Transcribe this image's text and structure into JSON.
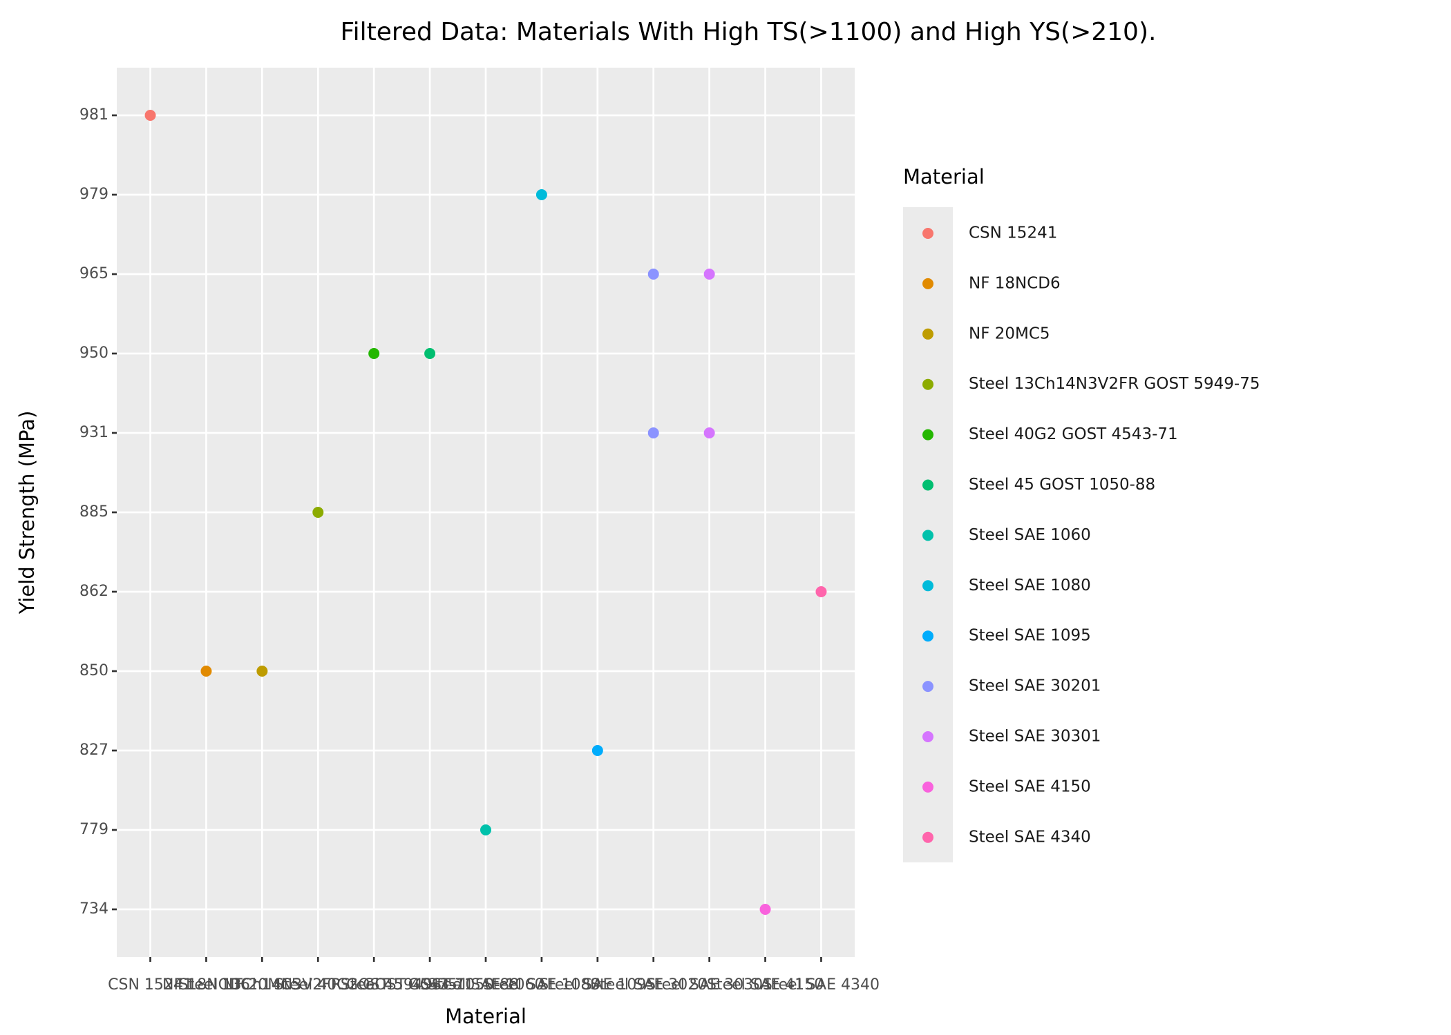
{
  "chart_data": {
    "type": "scatter",
    "title": "Filtered Data: Materials With High TS(>1100) and High YS(>210).",
    "x_label": "Material",
    "y_label": "Yield Strength (MPa)",
    "y_scale": "discrete",
    "y_categories": [
      734,
      779,
      827,
      850,
      862,
      885,
      931,
      950,
      965,
      979,
      981
    ],
    "grid": true,
    "legend_title": "Material",
    "legend_position": "right",
    "series": [
      {
        "name": "CSN 15241",
        "color": "#F8766D",
        "values": [
          981
        ]
      },
      {
        "name": "NF 18NCD6",
        "color": "#E18A00",
        "values": [
          850
        ]
      },
      {
        "name": "NF 20MC5",
        "color": "#BE9C00",
        "values": [
          850
        ]
      },
      {
        "name": "Steel 13Ch14N3V2FR GOST 5949-75",
        "color": "#8CAB00",
        "values": [
          885
        ]
      },
      {
        "name": "Steel 40G2 GOST 4543-71",
        "color": "#24B700",
        "values": [
          950
        ]
      },
      {
        "name": "Steel 45 GOST 1050-88",
        "color": "#00BE70",
        "values": [
          950
        ]
      },
      {
        "name": "Steel SAE 1060",
        "color": "#00C1AB",
        "values": [
          779
        ]
      },
      {
        "name": "Steel SAE 1080",
        "color": "#00BBDA",
        "values": [
          979
        ]
      },
      {
        "name": "Steel SAE 1095",
        "color": "#00ACFC",
        "values": [
          827
        ]
      },
      {
        "name": "Steel SAE 30201",
        "color": "#8B93FF",
        "values": [
          965,
          931
        ]
      },
      {
        "name": "Steel SAE 30301",
        "color": "#D575FE",
        "values": [
          965,
          931
        ]
      },
      {
        "name": "Steel SAE 4150",
        "color": "#F962DD",
        "values": [
          734
        ]
      },
      {
        "name": "Steel SAE 4340",
        "color": "#FF65AC",
        "values": [
          862
        ]
      }
    ]
  }
}
